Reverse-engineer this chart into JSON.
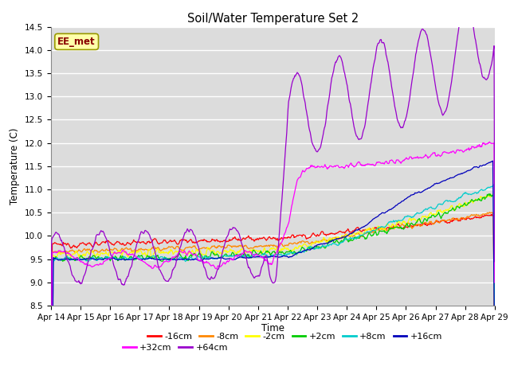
{
  "title": "Soil/Water Temperature Set 2",
  "ylabel": "Temperature (C)",
  "xlabel": "Time",
  "ylim": [
    8.5,
    14.5
  ],
  "yticks": [
    8.5,
    9.0,
    9.5,
    10.0,
    10.5,
    11.0,
    11.5,
    12.0,
    12.5,
    13.0,
    13.5,
    14.0,
    14.5
  ],
  "xtick_labels": [
    "Apr 14",
    "Apr 15",
    "Apr 16",
    "Apr 17",
    "Apr 18",
    "Apr 19",
    "Apr 20",
    "Apr 21",
    "Apr 22",
    "Apr 23",
    "Apr 24",
    "Apr 25",
    "Apr 26",
    "Apr 27",
    "Apr 28",
    "Apr 29"
  ],
  "series_colors": [
    "#ff0000",
    "#ff8800",
    "#ffff00",
    "#00cc00",
    "#00cccc",
    "#0000bb",
    "#ff00ff",
    "#9900cc"
  ],
  "series_labels": [
    "-16cm",
    "-8cm",
    "-2cm",
    "+2cm",
    "+8cm",
    "+16cm",
    "+32cm",
    "+64cm"
  ],
  "ee_met_label": "EE_met",
  "background_color": "#dcdcdc",
  "figure_color": "#ffffff",
  "grid_color": "#ffffff",
  "n_points": 720
}
